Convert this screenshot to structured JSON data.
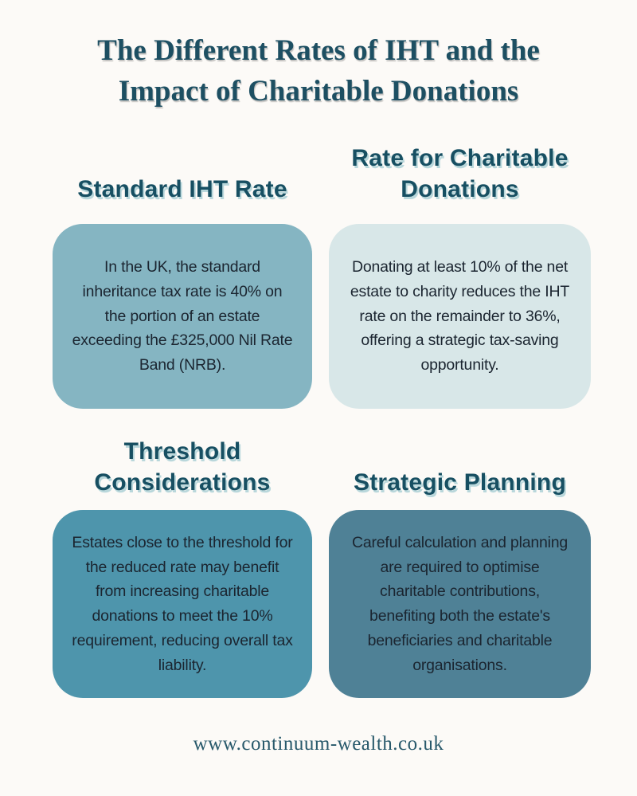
{
  "page": {
    "title_line1": "The Different Rates of IHT and the",
    "title_line2": "Impact of Charitable Donations",
    "footer_url": "www.continuum-wealth.co.uk"
  },
  "colors": {
    "page_background": "#fcfaf7",
    "title_text": "#1d4f62",
    "heading_text": "#174f62",
    "heading_shadow": "#b9d7db",
    "body_text": "#1b2530",
    "footer_text": "#28596b",
    "card1_bg": "#85b5c2",
    "card2_bg": "#d8e7e8",
    "card3_bg": "#4e95ac",
    "card4_bg": "#4f8196"
  },
  "sections": [
    {
      "heading": "Standard IHT Rate",
      "body": "In the UK, the standard inheritance tax rate is 40% on the portion of an estate exceeding the £325,000 Nil Rate Band (NRB).",
      "bg": "#85b5c2"
    },
    {
      "heading": "Rate for Charitable Donations",
      "body": "Donating at least 10% of the net estate to charity reduces the IHT rate on the remainder to 36%, offering a strategic tax-saving opportunity.",
      "bg": "#d8e7e8"
    },
    {
      "heading": "Threshold Considerations",
      "body": "Estates close to the threshold for the reduced rate may benefit from increasing charitable donations to meet the 10% requirement, reducing overall tax liability.",
      "bg": "#4e95ac"
    },
    {
      "heading": "Strategic Planning",
      "body": "Careful calculation and planning are required to optimise charitable contributions, benefiting both the estate's beneficiaries and charitable organisations.",
      "bg": "#4f8196"
    }
  ]
}
